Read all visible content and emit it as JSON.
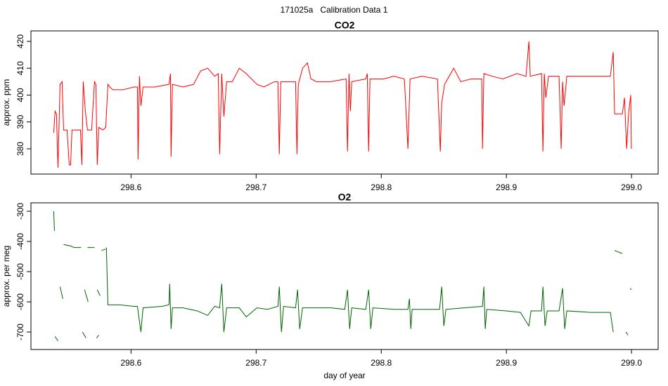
{
  "title": "171025a   Calibration Data 1",
  "chart_data": [
    {
      "type": "line",
      "title": "CO2",
      "ylabel": "approx. ppm",
      "color": "#ff0000",
      "xlim": [
        298.52,
        299.0213
      ],
      "ylim": [
        370.6,
        423.9
      ],
      "xticks": [
        298.6,
        298.7,
        298.8,
        298.9,
        {
          "value": 299,
          "label": "299.0"
        }
      ],
      "yticks": [
        380,
        390,
        400,
        410,
        420
      ],
      "x": [
        298.5382,
        298.5393,
        298.5404,
        298.5416,
        298.5433,
        298.5449,
        298.5461,
        298.5489,
        298.5506,
        298.5517,
        298.5528,
        298.5573,
        298.5596,
        298.5607,
        298.5618,
        298.5635,
        298.5652,
        298.5685,
        298.5708,
        298.5719,
        298.573,
        298.5742,
        298.5775,
        298.5798,
        298.5815,
        298.5831,
        298.5854,
        298.5938,
        298.6022,
        298.6051,
        298.6056,
        298.6067,
        298.6079,
        298.6096,
        298.6191,
        298.6303,
        298.6315,
        298.632,
        298.6331,
        298.6416,
        298.65,
        298.6556,
        298.6612,
        298.6669,
        298.6697,
        298.6708,
        298.6725,
        298.6742,
        298.6764,
        298.6809,
        298.6865,
        298.6921,
        298.7006,
        298.7062,
        298.7146,
        298.7174,
        298.7185,
        298.7197,
        298.7287,
        298.7315,
        298.7326,
        298.7337,
        298.7371,
        298.741,
        298.7438,
        298.7483,
        298.7596,
        298.7719,
        298.773,
        298.7742,
        298.7753,
        298.7764,
        298.7876,
        298.7888,
        298.7899,
        298.791,
        298.8017,
        298.8101,
        298.8185,
        298.8213,
        298.823,
        298.8326,
        298.8449,
        298.8472,
        298.8483,
        298.8506,
        298.8579,
        298.8635,
        298.8719,
        298.8803,
        298.8809,
        298.882,
        298.8888,
        298.8972,
        298.9084,
        298.9157,
        298.918,
        298.9191,
        298.9281,
        298.9287,
        298.9292,
        298.9303,
        298.9315,
        298.9337,
        298.9421,
        298.9438,
        298.9449,
        298.9461,
        298.9483,
        298.9618,
        298.9787,
        298.9831,
        298.9854,
        298.9865,
        298.9927,
        298.9944,
        298.9961,
        298.9978,
        298.9994,
        298.9999
      ],
      "values": [
        386,
        394,
        393,
        373,
        404,
        405,
        387,
        387,
        374,
        374,
        387,
        387,
        387,
        374,
        405,
        394,
        387,
        387,
        405,
        404,
        374,
        388,
        387,
        388,
        404,
        403,
        402,
        402,
        403,
        403,
        376,
        407,
        396,
        403,
        403,
        404,
        408,
        377,
        404,
        403,
        404,
        409,
        410,
        407,
        408,
        378,
        408,
        392,
        405,
        405,
        410,
        408,
        404,
        403,
        405,
        405,
        378,
        405,
        405,
        405,
        378,
        404,
        410,
        412,
        406,
        405,
        405,
        406,
        379,
        408,
        394,
        405,
        406,
        408,
        379,
        406,
        406,
        407,
        406,
        380,
        406,
        407,
        406,
        379,
        397,
        404,
        410,
        405,
        406,
        406,
        380,
        408,
        407,
        406,
        408,
        407,
        420,
        407,
        408,
        392,
        379,
        408,
        399,
        407,
        407,
        380,
        405,
        396,
        407,
        407,
        407,
        407,
        416,
        393,
        393,
        399,
        380,
        394,
        400,
        380
      ]
    },
    {
      "type": "line",
      "title": "O2",
      "ylabel": "approx. per meg",
      "xlabel": "day of year",
      "color": "#006400",
      "xlim": [
        298.52,
        299.0213
      ],
      "ylim": [
        -758,
        -272
      ],
      "xticks": [
        298.6,
        298.7,
        298.8,
        298.9,
        {
          "value": 299,
          "label": "299.0"
        }
      ],
      "yticks": [
        -300,
        -400,
        -500,
        -600,
        -700
      ],
      "x": [
        298.5382,
        298.5388,
        null,
        298.5393,
        298.5416,
        null,
        298.5433,
        298.5455,
        null,
        298.5461,
        298.5517,
        298.5545,
        298.5601,
        null,
        298.5612,
        298.564,
        null,
        298.5629,
        298.5657,
        null,
        298.5652,
        298.5708,
        null,
        298.5725,
        298.5742,
        null,
        298.573,
        298.5753,
        null,
        298.5764,
        298.5798,
        null,
        298.5803,
        298.5815,
        298.591,
        298.6022,
        298.6051,
        298.6079,
        298.6096,
        298.6247,
        298.6303,
        298.6309,
        298.632,
        298.6331,
        298.6416,
        298.6528,
        298.6612,
        298.6669,
        298.6708,
        298.6725,
        298.6742,
        298.6764,
        298.6865,
        298.6921,
        298.7006,
        298.709,
        298.7174,
        298.7185,
        298.7202,
        298.7219,
        298.7315,
        298.7331,
        298.7348,
        298.7371,
        298.7483,
        298.7596,
        298.7708,
        298.773,
        298.7747,
        298.7764,
        298.7876,
        298.7899,
        298.7916,
        298.7933,
        298.8101,
        298.8213,
        298.8225,
        298.8236,
        298.8247,
        298.8326,
        298.8466,
        298.8483,
        298.85,
        298.8517,
        298.8663,
        298.8809,
        298.882,
        298.8831,
        298.8843,
        298.8998,
        298.9112,
        298.918,
        298.9197,
        298.9281,
        298.9292,
        298.9309,
        298.9326,
        298.9421,
        298.9449,
        298.9466,
        298.9483,
        298.9674,
        298.9831,
        298.9854,
        null,
        298.9865,
        298.9927,
        null,
        298.9955,
        298.9972,
        null,
        298.9989,
        298.9999
      ],
      "values": [
        -300,
        -365,
        null,
        -715,
        -730,
        null,
        -550,
        -590,
        null,
        -410,
        -415,
        -420,
        -420,
        null,
        -700,
        -720,
        null,
        -560,
        -600,
        null,
        -420,
        -420,
        null,
        -720,
        -710,
        null,
        -560,
        -580,
        null,
        -430,
        -425,
        null,
        -420,
        -610,
        -610,
        -615,
        -615,
        -700,
        -620,
        -615,
        -610,
        -540,
        -690,
        -620,
        -620,
        -630,
        -645,
        -615,
        -620,
        -540,
        -700,
        -620,
        -620,
        -650,
        -620,
        -625,
        -615,
        -550,
        -700,
        -615,
        -620,
        -560,
        -690,
        -620,
        -620,
        -620,
        -625,
        -560,
        -690,
        -620,
        -625,
        -560,
        -690,
        -620,
        -625,
        -625,
        -590,
        -690,
        -625,
        -625,
        -625,
        -550,
        -680,
        -625,
        -620,
        -615,
        -550,
        -690,
        -625,
        -630,
        -635,
        -680,
        -630,
        -630,
        -550,
        -680,
        -630,
        -630,
        -555,
        -690,
        -630,
        -635,
        -635,
        -700,
        null,
        -430,
        -440,
        null,
        -700,
        -710,
        null,
        -555,
        -560
      ]
    }
  ]
}
